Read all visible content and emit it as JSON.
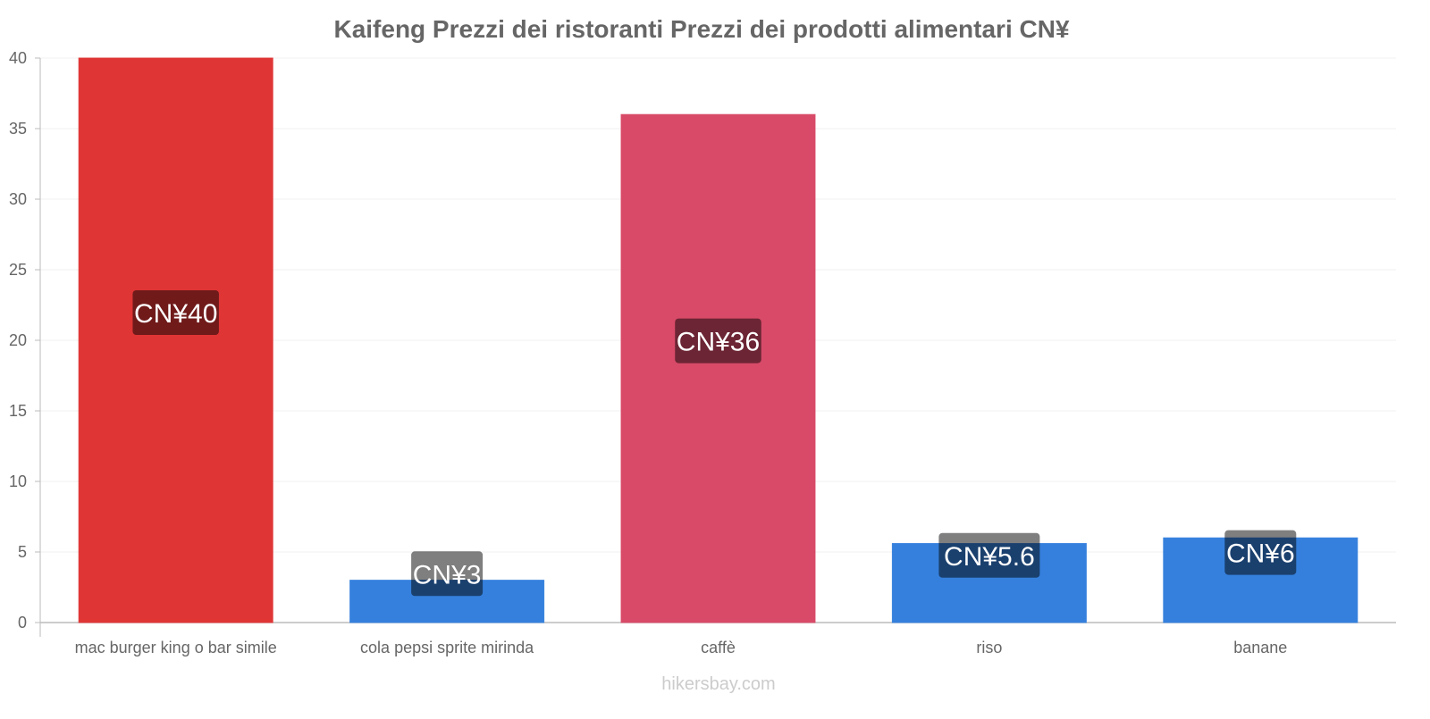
{
  "chart_data": {
    "type": "bar",
    "title": "Kaifeng Prezzi dei ristoranti Prezzi dei prodotti alimentari CN¥",
    "categories": [
      "mac burger king o bar simile",
      "cola pepsi sprite mirinda",
      "caffè",
      "riso",
      "banane"
    ],
    "values": [
      40,
      3,
      36,
      5.6,
      6
    ],
    "value_labels": [
      "CN¥40",
      "CN¥3",
      "CN¥36",
      "CN¥5.6",
      "CN¥6"
    ],
    "colors": [
      "#e03535",
      "#3580dd",
      "#d84a68",
      "#3580dd",
      "#3580dd"
    ],
    "ylim": [
      0,
      40
    ],
    "yticks": [
      0,
      5,
      10,
      15,
      20,
      25,
      30,
      35,
      40
    ],
    "xlabel": "",
    "ylabel": "",
    "grid": true
  },
  "watermark": "hikersbay.com"
}
